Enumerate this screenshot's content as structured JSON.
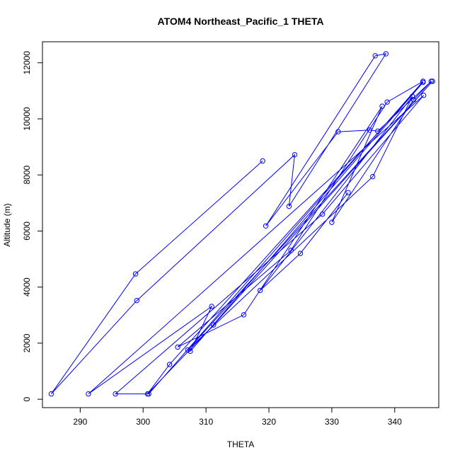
{
  "chart_data": {
    "type": "line",
    "title": "ATOM4 Northeast_Pacific_1 THETA",
    "xlabel": "THETA",
    "ylabel": "Altitude (m)",
    "xlim": [
      284,
      347
    ],
    "ylim": [
      -300,
      12750
    ],
    "xticks": [
      290,
      300,
      310,
      320,
      330,
      340
    ],
    "yticks": [
      0,
      2000,
      4000,
      6000,
      8000,
      10000,
      12000
    ],
    "grid": false,
    "legend": "none",
    "series_color": "#0000ff",
    "marker": "open-circle",
    "series": [
      {
        "x": [
          319.0,
          298.8,
          285.4,
          299.0,
          324.1,
          323.2,
          338.6,
          336.9,
          319.5,
          331.0,
          336.0,
          337.3,
          345.8,
          343.0,
          330.0,
          338.0,
          316.0,
          305.5,
          323.5,
          338.8,
          344.5,
          300.9,
          295.6,
          328.5,
          344.6,
          291.3,
          310.9,
          307.5,
          344.5,
          304.2,
          300.7,
          311.2,
          346.0,
          307.1,
          336.5,
          342.8,
          318.6,
          325.0,
          332.6
        ],
        "y": [
          8500,
          4470,
          190,
          3520,
          8720,
          6880,
          12320,
          12250,
          6180,
          9540,
          9600,
          9560,
          11340,
          10680,
          6310,
          10450,
          3010,
          1860,
          5310,
          10600,
          11340,
          190,
          190,
          6600,
          10840,
          190,
          3310,
          1710,
          11300,
          1240,
          190,
          2650,
          11340,
          1760,
          7940,
          10800,
          3880,
          5200,
          7370
        ]
      }
    ]
  }
}
